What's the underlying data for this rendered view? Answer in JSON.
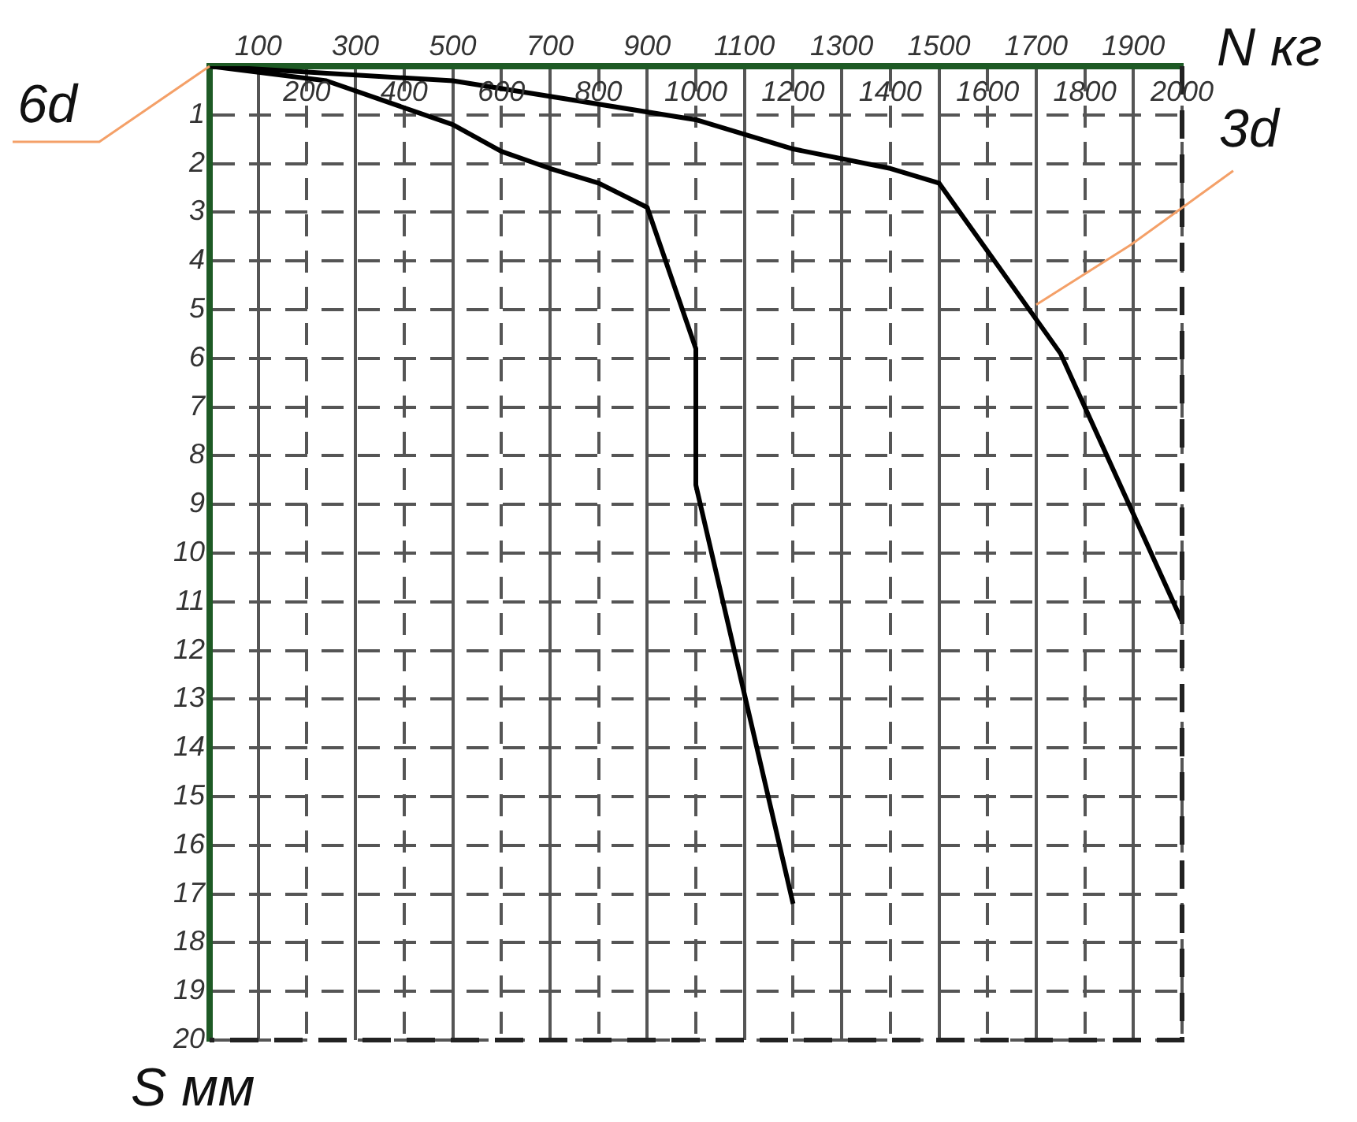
{
  "chart_data": {
    "type": "line",
    "xlabel": "N кг",
    "ylabel": "S мм",
    "xlim": [
      0,
      2000
    ],
    "ylim": [
      20,
      0
    ],
    "xticks": [
      {
        "value": 0,
        "label": null
      },
      200,
      400,
      600,
      800,
      1000,
      1200,
      1400,
      1600,
      1800,
      2000
    ],
    "x2lim": [
      0,
      2000
    ],
    "x2ticks": [
      100,
      300,
      500,
      700,
      900,
      1100,
      1300,
      1500,
      1700,
      1900
    ],
    "yticks": [
      {
        "value": 0,
        "label": null
      },
      1,
      2,
      3,
      4,
      5,
      6,
      7,
      8,
      9,
      10,
      11,
      12,
      13,
      14,
      15,
      16,
      17,
      18,
      19,
      20
    ],
    "grid": true,
    "line_style": "solid",
    "marker": "none",
    "legend": false,
    "series": [
      {
        "color": "#000000",
        "x": [
          0,
          240,
          500,
          600,
          700,
          800,
          900,
          1000,
          1000,
          1200
        ],
        "values": [
          0,
          0.3,
          1.2,
          1.75,
          2.1,
          2.4,
          2.9,
          5.8,
          8.6,
          17.2
        ]
      },
      {
        "color": "#000000",
        "x": [
          0,
          500,
          1000,
          1200,
          1400,
          1500,
          1750,
          2000
        ],
        "values": [
          0,
          0.3,
          1.1,
          1.7,
          2.1,
          2.4,
          5.9,
          11.4
        ]
      }
    ],
    "annotations": [
      {
        "text": "6d",
        "x": 0,
        "y": 0
      },
      {
        "text": "3d",
        "x": 1700,
        "y": 4.9
      }
    ]
  }
}
